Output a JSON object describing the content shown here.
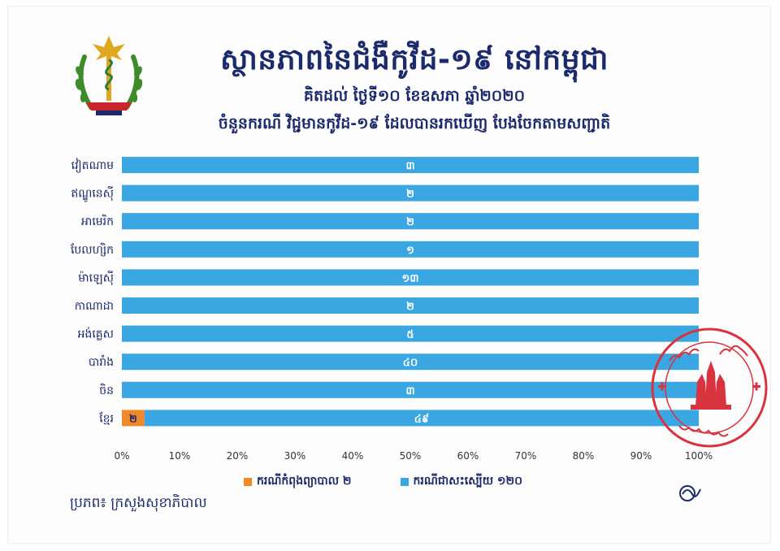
{
  "header": {
    "title": "ស្ថានភាពនៃជំងឺកូវីដ-១៩ នៅកម្ពុជា",
    "subtitle": "គិតដល់ ថ្ងៃទី១០ ខែឧសភា ឆ្នាំ២០២០",
    "subtitle2": "ចំនួនករណី វិជ្ជមានកូវីដ-១៩ ដែលបានរកឃើញ បែងចែកតាមសញ្ជាតិ"
  },
  "footer": {
    "source": "ប្រភព៖ ក្រសួងសុខាភិបាល"
  },
  "colors": {
    "treating": "#f0892a",
    "recovered": "#3aa6e2",
    "text": "#1c2a6b",
    "stamp": "#d8343f"
  },
  "chart_data": {
    "type": "bar",
    "orientation": "horizontal",
    "stacking": "percent",
    "categories": [
      "វៀតណាម",
      "ឥណ្ឌូនេស៊ី",
      "អាមេរិក",
      "បែលហ្សិក",
      "ម៉ាឡេស៊ី",
      "កាណាដា",
      "អង់គ្លេស",
      "បារាំង",
      "ចិន",
      "ខ្មែរ"
    ],
    "series": [
      {
        "name": "ករណីកំពុងព្យាបាល ២",
        "values": [
          0,
          0,
          0,
          0,
          0,
          0,
          0,
          0,
          0,
          2
        ],
        "labels": [
          "0",
          "0",
          "0",
          "0",
          "0",
          "0",
          "0",
          "0",
          "0",
          "២"
        ],
        "color": "#f0892a"
      },
      {
        "name": "ករណីជាសះស្បើយ ១២០",
        "values": [
          3,
          2,
          2,
          1,
          13,
          2,
          5,
          40,
          3,
          49
        ],
        "labels": [
          "៣",
          "២",
          "២",
          "១",
          "១៣",
          "២",
          "៥",
          "៤០",
          "៣",
          "៤៩"
        ],
        "color": "#3aa6e2"
      }
    ],
    "x_ticks": [
      "0%",
      "10%",
      "20%",
      "30%",
      "40%",
      "50%",
      "60%",
      "70%",
      "80%",
      "90%",
      "100%"
    ],
    "xlim": [
      0,
      100
    ],
    "grid": false,
    "legend": "bottom"
  }
}
